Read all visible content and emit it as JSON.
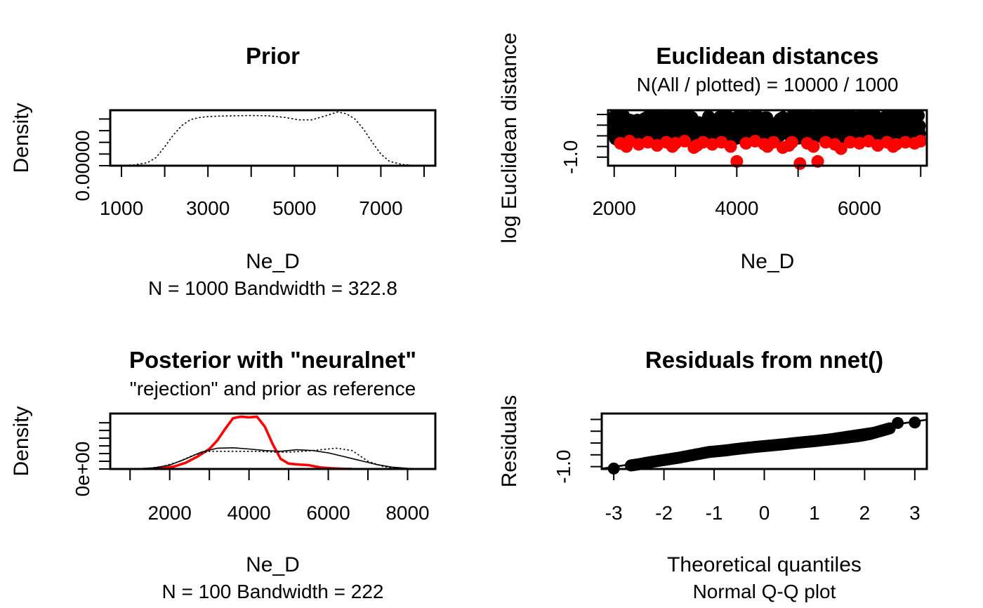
{
  "colors": {
    "ink": "#000000",
    "highlight": "#ff0000"
  },
  "chart_data": [
    {
      "id": "prior",
      "type": "line",
      "title": "Prior",
      "subtitle": "",
      "xlabel": "Ne_D",
      "sublabel": "N = 1000   Bandwidth = 322.8",
      "ylabel": "Density",
      "xlim": [
        740,
        8260
      ],
      "ylim": [
        0,
        0.00019
      ],
      "x_ticks": [
        1000,
        2000,
        3000,
        4000,
        5000,
        6000,
        7000,
        8000
      ],
      "x_tick_labels": [
        "1000",
        "3000",
        "5000",
        "7000"
      ],
      "x_tick_label_values": [
        1000,
        3000,
        5000,
        7000
      ],
      "y_ticks": [
        0,
        4e-05,
        8e-05,
        0.00012,
        0.00016
      ],
      "y_tick_labels": [
        "0.00000"
      ],
      "y_tick_label_values": [
        0
      ],
      "series": [
        {
          "style": "dotted",
          "color": "#000000",
          "x": [
            1000,
            1300,
            1600,
            1800,
            2000,
            2200,
            2400,
            2600,
            2800,
            3000,
            3300,
            3600,
            4000,
            4400,
            4800,
            5100,
            5400,
            5700,
            6000,
            6200,
            6400,
            6600,
            6800,
            7000,
            7200,
            7500,
            7800,
            8000
          ],
          "y": [
            5e-07,
            3e-06,
            1e-05,
            2.8e-05,
            6.5e-05,
            0.000105,
            0.000138,
            0.000158,
            0.000165,
            0.000168,
            0.00017,
            0.000171,
            0.000172,
            0.000171,
            0.000165,
            0.000157,
            0.000157,
            0.00017,
            0.000184,
            0.000178,
            0.00016,
            0.000125,
            8e-05,
            4e-05,
            1.5e-05,
            4e-06,
            8e-07,
            2e-07
          ]
        }
      ]
    },
    {
      "id": "euclidean",
      "type": "scatter",
      "title": "Euclidean distances",
      "subtitle": "N(All / plotted) =  10000 / 1000",
      "xlabel": "Ne_D",
      "ylabel": "log Euclidean distance",
      "xlim": [
        1900,
        7100
      ],
      "ylim": [
        -1.4,
        1.2
      ],
      "x_ticks": [
        2000,
        3000,
        4000,
        5000,
        6000,
        7000
      ],
      "x_tick_labels": [
        "2000",
        "4000",
        "6000"
      ],
      "x_tick_label_values": [
        2000,
        4000,
        6000
      ],
      "y_ticks": [
        -1.0,
        -0.5,
        0.0,
        0.5,
        1.0
      ],
      "y_tick_labels": [
        "-1.0"
      ],
      "y_tick_label_values": [
        -1.0
      ],
      "series": [
        {
          "name": "all",
          "color": "#000000",
          "x_range": [
            2000,
            7000
          ],
          "y_range": [
            -0.15,
            1.0
          ],
          "count": 1000
        },
        {
          "name": "accepted",
          "color": "#ff0000",
          "points": [
            [
              2100,
              -0.35
            ],
            [
              2250,
              -0.25
            ],
            [
              2400,
              -0.4
            ],
            [
              2550,
              -0.3
            ],
            [
              2700,
              -0.45
            ],
            [
              2850,
              -0.3
            ],
            [
              3000,
              -0.35
            ],
            [
              3150,
              -0.25
            ],
            [
              3300,
              -0.55
            ],
            [
              3450,
              -0.3
            ],
            [
              3600,
              -0.4
            ],
            [
              3750,
              -0.3
            ],
            [
              3900,
              -0.5
            ],
            [
              4000,
              -1.2
            ],
            [
              4150,
              -0.35
            ],
            [
              4300,
              -0.25
            ],
            [
              4450,
              -0.4
            ],
            [
              4600,
              -0.3
            ],
            [
              4750,
              -0.55
            ],
            [
              4900,
              -0.3
            ],
            [
              5030,
              -1.3
            ],
            [
              5150,
              -0.35
            ],
            [
              5320,
              -1.2
            ],
            [
              5450,
              -0.3
            ],
            [
              5600,
              -0.4
            ],
            [
              5700,
              -0.6
            ],
            [
              5850,
              -0.3
            ],
            [
              6000,
              -0.35
            ],
            [
              6150,
              -0.25
            ],
            [
              6300,
              -0.45
            ],
            [
              6450,
              -0.3
            ],
            [
              6600,
              -0.4
            ],
            [
              6750,
              -0.3
            ],
            [
              6900,
              -0.35
            ],
            [
              7000,
              -0.25
            ],
            [
              2200,
              -0.5
            ],
            [
              3350,
              -0.45
            ],
            [
              4500,
              -0.5
            ],
            [
              5250,
              -0.5
            ],
            [
              6550,
              -0.5
            ],
            [
              2950,
              -0.5
            ],
            [
              4850,
              -0.45
            ]
          ]
        }
      ]
    },
    {
      "id": "posterior",
      "type": "line",
      "title": "Posterior with \"neuralnet\"",
      "subtitle": "\"rejection\" and prior as reference",
      "xlabel": "Ne_D",
      "sublabel": "N = 100   Bandwidth = 222",
      "ylabel": "Density",
      "xlim": [
        500,
        8700
      ],
      "ylim": [
        0,
        0.00072
      ],
      "x_ticks": [
        1000,
        2000,
        3000,
        4000,
        5000,
        6000,
        7000,
        8000
      ],
      "x_tick_labels": [
        "2000",
        "4000",
        "6000",
        "8000"
      ],
      "x_tick_label_values": [
        2000,
        4000,
        6000,
        8000
      ],
      "y_ticks": [
        0,
        0.0001,
        0.0002,
        0.0003,
        0.0004,
        0.0005,
        0.0006
      ],
      "y_tick_labels": [
        "0e+00"
      ],
      "y_tick_label_values": [
        0
      ],
      "series": [
        {
          "style": "solid-thick",
          "color": "#ff0000",
          "x": [
            1500,
            1800,
            2100,
            2400,
            2700,
            3000,
            3200,
            3400,
            3600,
            3800,
            4000,
            4200,
            4400,
            4600,
            4800,
            5000,
            5200,
            5500,
            5800,
            6100,
            6400,
            6600
          ],
          "y": [
            2e-06,
            1e-05,
            3e-05,
            8e-05,
            0.00016,
            0.00026,
            0.00037,
            0.00052,
            0.00066,
            0.00068,
            0.00067,
            0.00068,
            0.00055,
            0.00032,
            0.00013,
            7e-05,
            6e-05,
            5e-05,
            2e-05,
            8e-06,
            2e-06,
            5e-07
          ]
        },
        {
          "style": "solid",
          "color": "#000000",
          "x": [
            700,
            1200,
            1600,
            2000,
            2400,
            2800,
            3200,
            3600,
            4000,
            4400,
            4800,
            5200,
            5600,
            6000,
            6400,
            6800,
            7200,
            7600,
            8000,
            8500
          ],
          "y": [
            5e-07,
            4e-06,
            1.5e-05,
            5e-05,
            0.00013,
            0.00022,
            0.00027,
            0.000275,
            0.00026,
            0.00024,
            0.00023,
            0.00025,
            0.00024,
            0.00021,
            0.00016,
            0.00011,
            6e-05,
            2.5e-05,
            8e-06,
            1e-06
          ]
        },
        {
          "style": "dotted",
          "color": "#000000",
          "x": [
            1000,
            1400,
            1800,
            2200,
            2600,
            3000,
            3400,
            3800,
            4200,
            4600,
            5000,
            5400,
            5800,
            6200,
            6600,
            6800,
            7000,
            7400,
            7800,
            8000
          ],
          "y": [
            1e-06,
            6e-06,
            3e-05,
            9e-05,
            0.00018,
            0.00023,
            0.00023,
            0.00023,
            0.00023,
            0.00022,
            0.00022,
            0.00023,
            0.00025,
            0.00027,
            0.00024,
            0.00017,
            0.0001,
            3e-05,
            5e-06,
            1e-06
          ]
        }
      ]
    },
    {
      "id": "residuals",
      "type": "scatter",
      "title": "Residuals from nnet()",
      "xlabel": "Theoretical quantiles",
      "sublabel": "Normal Q-Q plot",
      "ylabel": "Residuals",
      "xlim": [
        -3.24,
        3.24
      ],
      "ylim": [
        -1.1,
        1.25
      ],
      "x_ticks": [
        -3,
        -2,
        -1,
        0,
        1,
        2,
        3
      ],
      "x_tick_labels": [
        "-3",
        "-2",
        "-1",
        "0",
        "1",
        "2",
        "3"
      ],
      "x_tick_label_values": [
        -3,
        -2,
        -1,
        0,
        1,
        2,
        3
      ],
      "y_ticks": [
        -1.0,
        -0.5,
        0.0,
        0.5,
        1.0
      ],
      "y_tick_labels": [
        "-1.0"
      ],
      "y_tick_label_values": [
        -1.0
      ],
      "reference_line": {
        "intercept": -0.05,
        "slope": 0.32
      },
      "series": [
        {
          "name": "qq",
          "color": "#000000",
          "count": 1000,
          "x": [
            -3.0,
            -2.66,
            -2.5,
            -2.3,
            -2.0,
            -1.7,
            -1.4,
            -1.1,
            -0.8,
            -0.5,
            -0.2,
            0.1,
            0.4,
            0.7,
            1.0,
            1.3,
            1.6,
            1.9,
            2.1,
            2.3,
            2.5,
            2.66,
            3.0
          ],
          "y": [
            -1.08,
            -0.95,
            -0.9,
            -0.82,
            -0.72,
            -0.62,
            -0.5,
            -0.38,
            -0.32,
            -0.24,
            -0.17,
            -0.11,
            -0.05,
            0.02,
            0.08,
            0.15,
            0.22,
            0.3,
            0.38,
            0.5,
            0.62,
            0.85,
            0.87
          ]
        }
      ]
    }
  ]
}
